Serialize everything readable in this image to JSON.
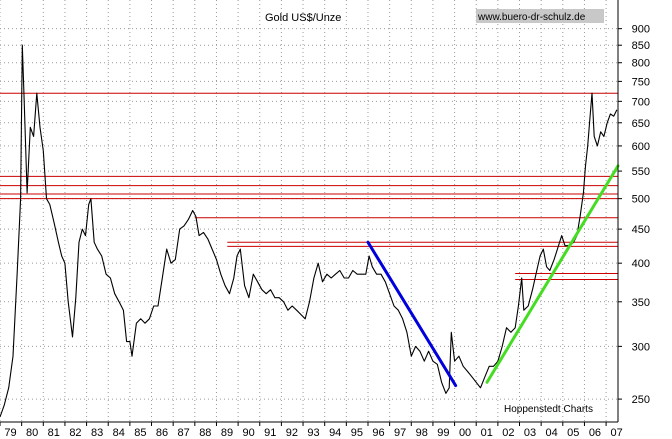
{
  "chart_data": {
    "type": "line",
    "title": "Gold US$/Unze",
    "watermark": "www.buero-dr-schulz.de",
    "source": "Hoppenstedt Charts",
    "y_scale": "log",
    "ylim": [
      235,
      960
    ],
    "xlim": [
      1979.0,
      2007.55
    ],
    "x_ticks": [
      {
        "value": 1979,
        "label": "79"
      },
      {
        "value": 1980,
        "label": "80"
      },
      {
        "value": 1981,
        "label": "81"
      },
      {
        "value": 1982,
        "label": "82"
      },
      {
        "value": 1983,
        "label": "83"
      },
      {
        "value": 1984,
        "label": "84"
      },
      {
        "value": 1985,
        "label": "85"
      },
      {
        "value": 1986,
        "label": "86"
      },
      {
        "value": 1987,
        "label": "87"
      },
      {
        "value": 1988,
        "label": "88"
      },
      {
        "value": 1989,
        "label": "89"
      },
      {
        "value": 1990,
        "label": "90"
      },
      {
        "value": 1991,
        "label": "91"
      },
      {
        "value": 1992,
        "label": "92"
      },
      {
        "value": 1993,
        "label": "93"
      },
      {
        "value": 1994,
        "label": "94"
      },
      {
        "value": 1995,
        "label": "95"
      },
      {
        "value": 1996,
        "label": "96"
      },
      {
        "value": 1997,
        "label": "97"
      },
      {
        "value": 1998,
        "label": "98"
      },
      {
        "value": 1999,
        "label": "99"
      },
      {
        "value": 2000,
        "label": "00"
      },
      {
        "value": 2001,
        "label": "01"
      },
      {
        "value": 2002,
        "label": "02"
      },
      {
        "value": 2003,
        "label": "03"
      },
      {
        "value": 2004,
        "label": "04"
      },
      {
        "value": 2005,
        "label": "05"
      },
      {
        "value": 2006,
        "label": "06"
      },
      {
        "value": 2007,
        "label": "07"
      }
    ],
    "y_ticks": [
      {
        "value": 250,
        "label": "250"
      },
      {
        "value": 300,
        "label": "300"
      },
      {
        "value": 350,
        "label": "350"
      },
      {
        "value": 400,
        "label": "400"
      },
      {
        "value": 450,
        "label": "450"
      },
      {
        "value": 500,
        "label": "500"
      },
      {
        "value": 550,
        "label": "550"
      },
      {
        "value": 600,
        "label": "600"
      },
      {
        "value": 650,
        "label": "650"
      },
      {
        "value": 700,
        "label": "700"
      },
      {
        "value": 750,
        "label": "750"
      },
      {
        "value": 800,
        "label": "800"
      },
      {
        "value": 850,
        "label": "850"
      },
      {
        "value": 900,
        "label": "900"
      }
    ],
    "grid": "dotted",
    "series": [
      {
        "color": "#000000",
        "points": [
          [
            1979.0,
            235
          ],
          [
            1979.2,
            245
          ],
          [
            1979.4,
            260
          ],
          [
            1979.6,
            290
          ],
          [
            1979.8,
            390
          ],
          [
            1979.95,
            500
          ],
          [
            1980.03,
            850
          ],
          [
            1980.12,
            700
          ],
          [
            1980.25,
            510
          ],
          [
            1980.4,
            640
          ],
          [
            1980.55,
            620
          ],
          [
            1980.7,
            720
          ],
          [
            1980.85,
            640
          ],
          [
            1981.0,
            590
          ],
          [
            1981.15,
            500
          ],
          [
            1981.3,
            490
          ],
          [
            1981.5,
            460
          ],
          [
            1981.7,
            430
          ],
          [
            1981.85,
            410
          ],
          [
            1982.0,
            400
          ],
          [
            1982.15,
            350
          ],
          [
            1982.35,
            310
          ],
          [
            1982.5,
            355
          ],
          [
            1982.65,
            430
          ],
          [
            1982.8,
            450
          ],
          [
            1982.95,
            440
          ],
          [
            1983.1,
            490
          ],
          [
            1983.2,
            500
          ],
          [
            1983.35,
            430
          ],
          [
            1983.5,
            420
          ],
          [
            1983.7,
            410
          ],
          [
            1983.9,
            385
          ],
          [
            1984.1,
            380
          ],
          [
            1984.3,
            360
          ],
          [
            1984.5,
            350
          ],
          [
            1984.7,
            340
          ],
          [
            1984.85,
            305
          ],
          [
            1985.0,
            305
          ],
          [
            1985.1,
            290
          ],
          [
            1985.3,
            325
          ],
          [
            1985.5,
            330
          ],
          [
            1985.7,
            325
          ],
          [
            1985.9,
            330
          ],
          [
            1986.1,
            345
          ],
          [
            1986.3,
            345
          ],
          [
            1986.5,
            380
          ],
          [
            1986.7,
            420
          ],
          [
            1986.9,
            400
          ],
          [
            1987.1,
            405
          ],
          [
            1987.3,
            450
          ],
          [
            1987.5,
            455
          ],
          [
            1987.7,
            465
          ],
          [
            1987.9,
            480
          ],
          [
            1988.05,
            470
          ],
          [
            1988.2,
            440
          ],
          [
            1988.4,
            445
          ],
          [
            1988.6,
            435
          ],
          [
            1988.8,
            420
          ],
          [
            1989.0,
            405
          ],
          [
            1989.2,
            385
          ],
          [
            1989.4,
            370
          ],
          [
            1989.6,
            360
          ],
          [
            1989.8,
            380
          ],
          [
            1989.95,
            410
          ],
          [
            1990.1,
            420
          ],
          [
            1990.3,
            370
          ],
          [
            1990.5,
            355
          ],
          [
            1990.7,
            385
          ],
          [
            1990.9,
            375
          ],
          [
            1991.1,
            365
          ],
          [
            1991.3,
            360
          ],
          [
            1991.5,
            365
          ],
          [
            1991.7,
            355
          ],
          [
            1991.9,
            355
          ],
          [
            1992.1,
            350
          ],
          [
            1992.3,
            340
          ],
          [
            1992.5,
            345
          ],
          [
            1992.7,
            340
          ],
          [
            1992.9,
            335
          ],
          [
            1993.1,
            330
          ],
          [
            1993.3,
            350
          ],
          [
            1993.5,
            380
          ],
          [
            1993.7,
            400
          ],
          [
            1993.9,
            375
          ],
          [
            1994.1,
            385
          ],
          [
            1994.3,
            380
          ],
          [
            1994.5,
            385
          ],
          [
            1994.7,
            390
          ],
          [
            1994.9,
            380
          ],
          [
            1995.1,
            380
          ],
          [
            1995.3,
            390
          ],
          [
            1995.5,
            385
          ],
          [
            1995.7,
            385
          ],
          [
            1995.9,
            385
          ],
          [
            1996.05,
            410
          ],
          [
            1996.2,
            395
          ],
          [
            1996.4,
            385
          ],
          [
            1996.6,
            385
          ],
          [
            1996.8,
            375
          ],
          [
            1997.0,
            360
          ],
          [
            1997.2,
            345
          ],
          [
            1997.4,
            340
          ],
          [
            1997.6,
            330
          ],
          [
            1997.8,
            315
          ],
          [
            1998.0,
            290
          ],
          [
            1998.2,
            300
          ],
          [
            1998.4,
            295
          ],
          [
            1998.6,
            285
          ],
          [
            1998.8,
            295
          ],
          [
            1999.0,
            285
          ],
          [
            1999.2,
            282
          ],
          [
            1999.4,
            265
          ],
          [
            1999.6,
            255
          ],
          [
            1999.75,
            260
          ],
          [
            1999.85,
            315
          ],
          [
            2000.0,
            285
          ],
          [
            2000.2,
            290
          ],
          [
            2000.4,
            280
          ],
          [
            2000.6,
            275
          ],
          [
            2000.8,
            270
          ],
          [
            2001.0,
            265
          ],
          [
            2001.2,
            260
          ],
          [
            2001.4,
            270
          ],
          [
            2001.6,
            280
          ],
          [
            2001.8,
            280
          ],
          [
            2002.0,
            285
          ],
          [
            2002.2,
            300
          ],
          [
            2002.4,
            320
          ],
          [
            2002.6,
            315
          ],
          [
            2002.8,
            320
          ],
          [
            2002.95,
            345
          ],
          [
            2003.1,
            380
          ],
          [
            2003.2,
            340
          ],
          [
            2003.4,
            345
          ],
          [
            2003.6,
            365
          ],
          [
            2003.8,
            390
          ],
          [
            2003.95,
            410
          ],
          [
            2004.1,
            420
          ],
          [
            2004.25,
            395
          ],
          [
            2004.4,
            390
          ],
          [
            2004.6,
            405
          ],
          [
            2004.8,
            425
          ],
          [
            2004.95,
            440
          ],
          [
            2005.1,
            425
          ],
          [
            2005.3,
            425
          ],
          [
            2005.5,
            430
          ],
          [
            2005.65,
            440
          ],
          [
            2005.8,
            470
          ],
          [
            2005.95,
            510
          ],
          [
            2006.05,
            560
          ],
          [
            2006.15,
            600
          ],
          [
            2006.25,
            660
          ],
          [
            2006.35,
            720
          ],
          [
            2006.45,
            620
          ],
          [
            2006.6,
            600
          ],
          [
            2006.75,
            630
          ],
          [
            2006.9,
            620
          ],
          [
            2007.05,
            650
          ],
          [
            2007.2,
            670
          ],
          [
            2007.35,
            665
          ],
          [
            2007.5,
            680
          ]
        ]
      }
    ],
    "horizontal_lines": [
      {
        "value": 720,
        "x_from": 1979.0,
        "x_to": 2007.55,
        "color": "#cc0000"
      },
      {
        "value": 540,
        "x_from": 1979.0,
        "x_to": 2007.55,
        "color": "#cc0000"
      },
      {
        "value": 523,
        "x_from": 1979.0,
        "x_to": 2007.55,
        "color": "#cc0000"
      },
      {
        "value": 508,
        "x_from": 1979.0,
        "x_to": 2007.55,
        "color": "#cc0000"
      },
      {
        "value": 500,
        "x_from": 1979.0,
        "x_to": 2007.55,
        "color": "#cc0000"
      },
      {
        "value": 468,
        "x_from": 1988.0,
        "x_to": 2007.55,
        "color": "#cc0000"
      },
      {
        "value": 430,
        "x_from": 1989.5,
        "x_to": 2007.55,
        "color": "#cc0000"
      },
      {
        "value": 424,
        "x_from": 1989.5,
        "x_to": 2007.55,
        "color": "#cc0000"
      },
      {
        "value": 386,
        "x_from": 2002.8,
        "x_to": 2007.55,
        "color": "#cc0000"
      },
      {
        "value": 378,
        "x_from": 2002.8,
        "x_to": 2007.55,
        "color": "#cc0000"
      }
    ],
    "trend_lines": [
      {
        "from": [
          1996.0,
          430
        ],
        "to": [
          2000.05,
          262
        ],
        "color": "#0000dd"
      },
      {
        "from": [
          2001.5,
          265
        ],
        "to": [
          2007.55,
          560
        ],
        "color": "#44dd22"
      }
    ]
  }
}
